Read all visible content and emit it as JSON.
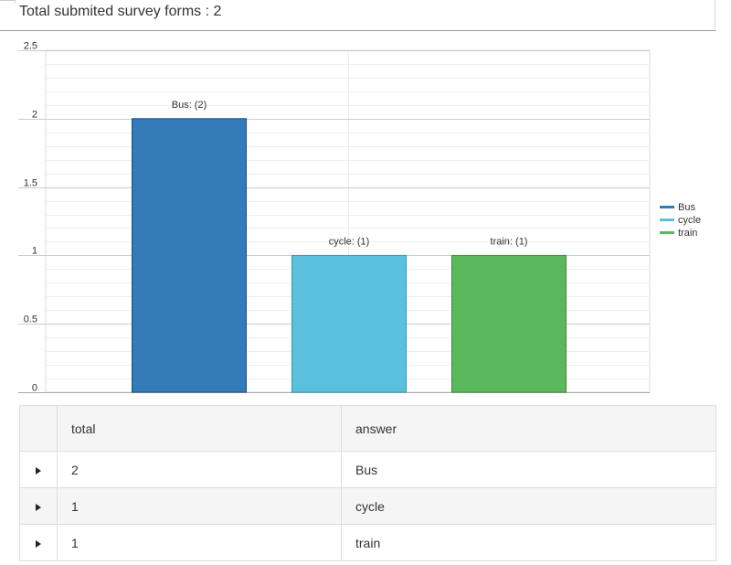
{
  "page": {
    "title": "Total submited survey forms : 2"
  },
  "chart_data": {
    "type": "bar",
    "categories": [
      "Bus",
      "cycle",
      "train"
    ],
    "values": [
      2,
      1,
      1
    ],
    "colors": [
      "#337ab7",
      "#5bc0de",
      "#5cb85c"
    ],
    "data_labels": [
      "Bus: (2)",
      "cycle: (1)",
      "train: (1)"
    ],
    "legend": [
      "Bus",
      "cycle",
      "train"
    ],
    "legend_position": "right",
    "ylim": [
      0,
      2.5
    ],
    "yticks": [
      "0",
      "0.5",
      "1",
      "1.5",
      "2",
      "2.5"
    ],
    "grid": true,
    "title": "",
    "xlabel": "",
    "ylabel": ""
  },
  "table": {
    "headers": {
      "total": "total",
      "answer": "answer"
    },
    "rows": [
      {
        "total": "2",
        "answer": "Bus"
      },
      {
        "total": "1",
        "answer": "cycle"
      },
      {
        "total": "1",
        "answer": "train"
      }
    ]
  }
}
